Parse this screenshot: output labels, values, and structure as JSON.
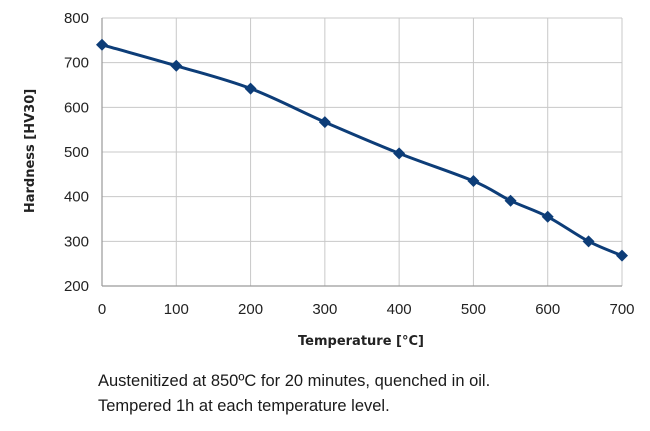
{
  "chart_data": {
    "type": "line",
    "title": "",
    "xlabel": "Temperature [°C]",
    "ylabel": "Hardness [HV30]",
    "xlim": [
      0,
      700
    ],
    "ylim": [
      200,
      800
    ],
    "xticks": [
      0,
      100,
      200,
      300,
      400,
      500,
      600,
      700
    ],
    "yticks": [
      200,
      300,
      400,
      500,
      600,
      700,
      800
    ],
    "grid": true,
    "legend": "none",
    "series": [
      {
        "x": [
          0,
          100,
          200,
          300,
          400,
          500,
          550,
          600,
          655,
          700
        ],
        "y": [
          740,
          693,
          642,
          567,
          497,
          435,
          391,
          355,
          300,
          268
        ],
        "color": "#0d3d78",
        "marker": "diamond"
      }
    ]
  },
  "caption": {
    "line1": "Austenitized at 850ºC for 20 minutes, quenched in oil.",
    "line2": "Tempered 1h at each temperature level."
  }
}
